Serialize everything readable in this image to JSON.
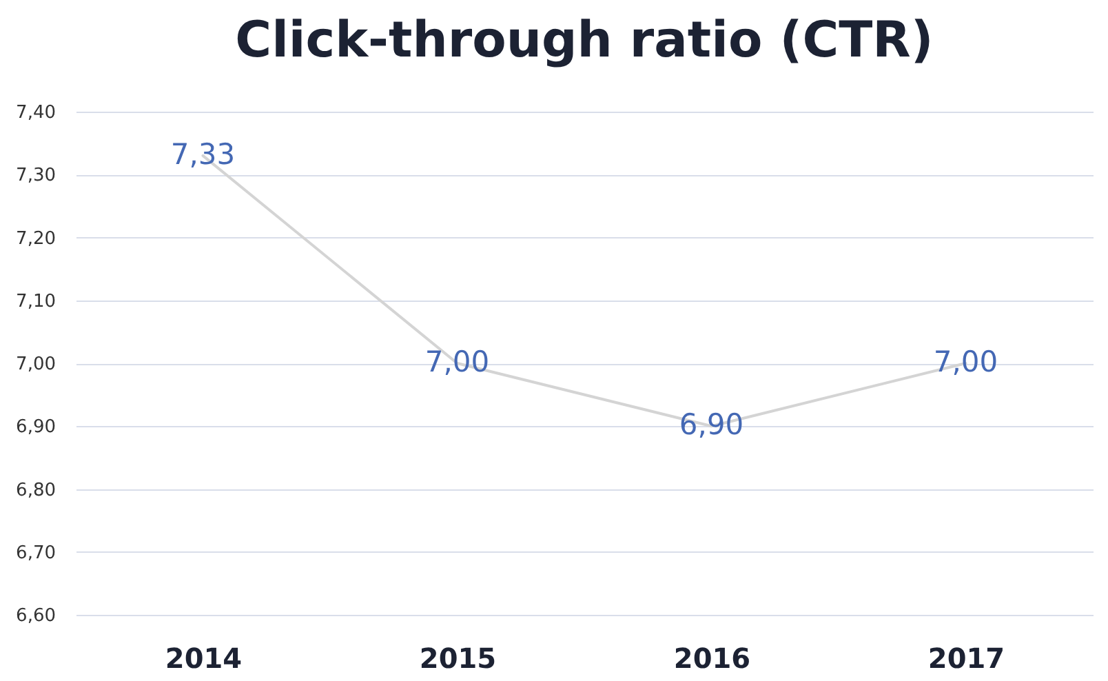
{
  "chart_data": {
    "type": "line",
    "title": "Click-through ratio (CTR)",
    "categories": [
      "2014",
      "2015",
      "2016",
      "2017"
    ],
    "series": [
      {
        "color": "#d4d4d4",
        "values": [
          7.33,
          7.0,
          6.9,
          7.0
        ],
        "value_labels": [
          "7,33",
          "7,00",
          "6,90",
          "7,00"
        ]
      }
    ],
    "ylim": [
      6.6,
      7.4
    ],
    "yticks": [
      {
        "value": 6.6,
        "label": "6,60"
      },
      {
        "value": 6.7,
        "label": "6,70"
      },
      {
        "value": 6.8,
        "label": "6,80"
      },
      {
        "value": 6.9,
        "label": "6,90"
      },
      {
        "value": 7.0,
        "label": "7,00"
      },
      {
        "value": 7.1,
        "label": "7,10"
      },
      {
        "value": 7.2,
        "label": "7,20"
      },
      {
        "value": 7.3,
        "label": "7,30"
      },
      {
        "value": 7.4,
        "label": "7,40"
      }
    ],
    "grid": "y"
  }
}
